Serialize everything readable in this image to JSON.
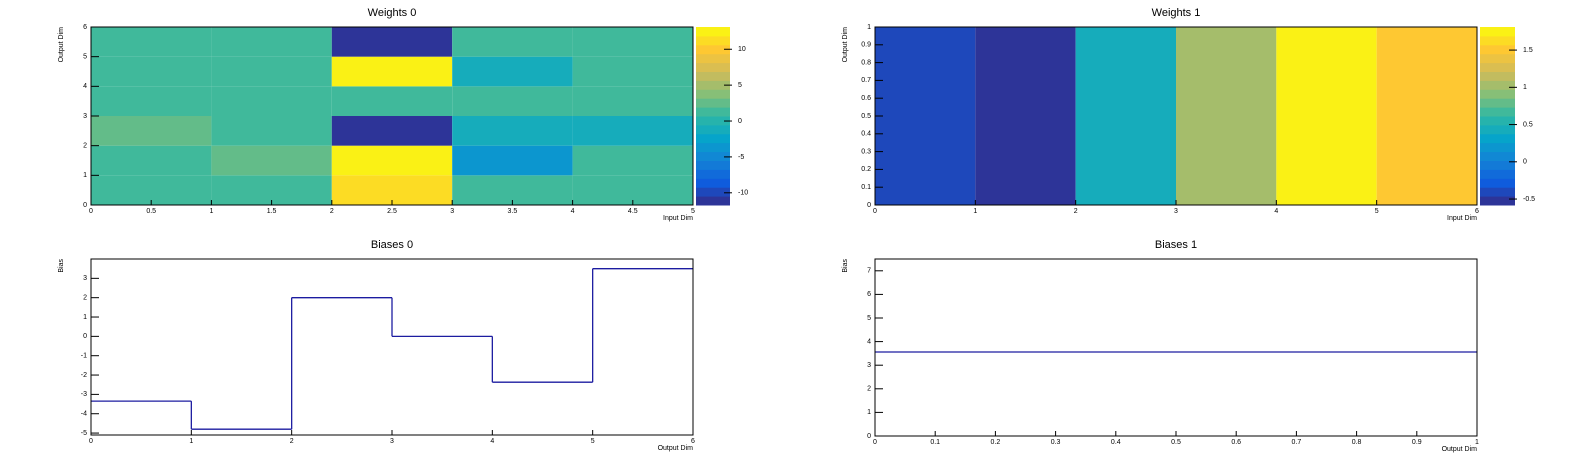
{
  "chart_data": [
    {
      "type": "heatmap",
      "title": "Weights 0",
      "x_label": "Input Dim",
      "y_label": "Output Dim",
      "xbins": [
        0,
        1,
        2,
        3,
        4,
        5
      ],
      "ybins": [
        0,
        1,
        2,
        3,
        4,
        5,
        6
      ],
      "z": [
        [
          1,
          1,
          11,
          1,
          1
        ],
        [
          1,
          3,
          13,
          -4,
          1
        ],
        [
          3,
          1,
          -11,
          -1,
          -1
        ],
        [
          1,
          1,
          1,
          1,
          1
        ],
        [
          1,
          1,
          13,
          -1,
          1
        ],
        [
          1,
          1,
          -11.7,
          1,
          1
        ]
      ],
      "xlim": [
        0,
        5
      ],
      "ylim": [
        0,
        6
      ],
      "xticks": [
        0,
        0.5,
        1,
        1.5,
        2,
        2.5,
        3,
        3.5,
        4,
        4.5,
        5
      ],
      "yticks": [
        0,
        1,
        2,
        3,
        4,
        5,
        6
      ],
      "zlim": [
        -11.7,
        13.1
      ],
      "zticks": [
        -10,
        -5,
        0,
        5,
        10
      ],
      "palette": [
        "#352a87",
        "#0f5cdd",
        "#1481d6",
        "#06a4ca",
        "#2eb7a4",
        "#87bf77",
        "#d1bb59",
        "#fec832",
        "#f9fb0e"
      ]
    },
    {
      "type": "heatmap",
      "title": "Weights 1",
      "x_label": "Input Dim",
      "y_label": "Output Dim",
      "xbins": [
        0,
        1,
        2,
        3,
        4,
        5,
        6
      ],
      "ybins": [
        0,
        1
      ],
      "z": [
        [
          -0.35,
          -0.58,
          0.45,
          1.0,
          1.81,
          1.5
        ]
      ],
      "xlim": [
        0,
        6
      ],
      "ylim": [
        0,
        1
      ],
      "xticks": [
        0,
        1,
        2,
        3,
        4,
        5,
        6
      ],
      "yticks": [
        0,
        0.1,
        0.2,
        0.3,
        0.4,
        0.5,
        0.6,
        0.7,
        0.8,
        0.9,
        1
      ],
      "zlim": [
        -0.58,
        1.81
      ],
      "zticks": [
        -0.5,
        0,
        0.5,
        1,
        1.5
      ],
      "palette": [
        "#352a87",
        "#0f5cdd",
        "#1481d6",
        "#06a4ca",
        "#2eb7a4",
        "#87bf77",
        "#d1bb59",
        "#fec832",
        "#f9fb0e"
      ]
    },
    {
      "type": "histogram",
      "title": "Biases 0",
      "x_label": "Output Dim",
      "y_label": "Bias",
      "bins": [
        0,
        1,
        2,
        3,
        4,
        5,
        6
      ],
      "values": [
        -3.35,
        -4.8,
        2.0,
        0.0,
        -2.37,
        3.5
      ],
      "color": "#1c1ca0",
      "xlim": [
        0,
        6
      ],
      "ylim": [
        -5.1,
        4.0
      ],
      "xticks": [
        0,
        1,
        2,
        3,
        4,
        5,
        6
      ],
      "yticks": [
        -5,
        -4,
        -3,
        -2,
        -1,
        0,
        1,
        2,
        3
      ]
    },
    {
      "type": "histogram",
      "title": "Biases 1",
      "x_label": "Output Dim",
      "y_label": "Bias",
      "bins": [
        0,
        1
      ],
      "values": [
        3.56
      ],
      "color": "#1c1ca0",
      "xlim": [
        0,
        1
      ],
      "ylim": [
        0,
        7.5
      ],
      "xticks": [
        0,
        0.1,
        0.2,
        0.3,
        0.4,
        0.5,
        0.6,
        0.7,
        0.8,
        0.9,
        1
      ],
      "yticks": [
        0,
        1,
        2,
        3,
        4,
        5,
        6,
        7
      ]
    }
  ]
}
